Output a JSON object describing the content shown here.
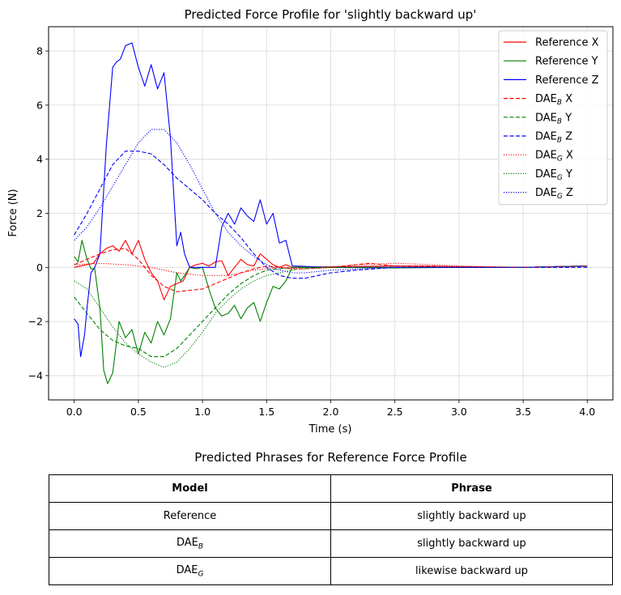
{
  "chart_data": {
    "type": "line",
    "title": "Predicted Force Profile for 'slightly backward up'",
    "xlabel": "Time (s)",
    "ylabel": "Force (N)",
    "xlim": [
      -0.2,
      4.2
    ],
    "ylim": [
      -4.9,
      8.9
    ],
    "xticks": [
      0.0,
      0.5,
      1.0,
      1.5,
      2.0,
      2.5,
      3.0,
      3.5,
      4.0
    ],
    "xtick_labels": [
      "0.0",
      "0.5",
      "1.0",
      "1.5",
      "2.0",
      "2.5",
      "3.0",
      "3.5",
      "4.0"
    ],
    "yticks": [
      -4,
      -2,
      0,
      2,
      4,
      6,
      8
    ],
    "ytick_labels": [
      "−4",
      "−2",
      "0",
      "2",
      "4",
      "6",
      "8"
    ],
    "grid": true,
    "legend_position": "top-right",
    "series": [
      {
        "name": "Reference X",
        "legend_main": "Reference X",
        "legend_sub": "",
        "legend_tail": "",
        "color": "#ff0000",
        "style": "solid",
        "x": [
          0,
          0.05,
          0.1,
          0.15,
          0.2,
          0.25,
          0.3,
          0.35,
          0.4,
          0.45,
          0.5,
          0.55,
          0.6,
          0.65,
          0.7,
          0.75,
          0.8,
          0.85,
          0.9,
          0.95,
          1.0,
          1.05,
          1.1,
          1.15,
          1.2,
          1.25,
          1.3,
          1.35,
          1.4,
          1.45,
          1.5,
          1.55,
          1.6,
          1.65,
          1.7,
          2.0,
          2.5,
          3.0,
          3.5,
          4.0
        ],
        "y": [
          0.0,
          0.05,
          0.1,
          0.15,
          0.5,
          0.7,
          0.8,
          0.6,
          1.0,
          0.5,
          1.0,
          0.3,
          -0.2,
          -0.5,
          -1.2,
          -0.7,
          -0.6,
          -0.5,
          0.0,
          0.1,
          0.15,
          0.05,
          0.2,
          0.25,
          -0.3,
          0.0,
          0.3,
          0.1,
          0.05,
          0.5,
          0.3,
          0.1,
          0.0,
          0.1,
          0.0,
          0.02,
          0.05,
          0.03,
          0.0,
          0.05
        ]
      },
      {
        "name": "Reference Y",
        "legend_main": "Reference Y",
        "legend_sub": "",
        "legend_tail": "",
        "color": "#008000",
        "style": "solid",
        "x": [
          0,
          0.03,
          0.06,
          0.1,
          0.13,
          0.16,
          0.2,
          0.23,
          0.26,
          0.3,
          0.35,
          0.4,
          0.45,
          0.5,
          0.55,
          0.6,
          0.65,
          0.7,
          0.75,
          0.8,
          0.83,
          0.86,
          0.9,
          0.95,
          1.0,
          1.05,
          1.1,
          1.15,
          1.2,
          1.25,
          1.3,
          1.35,
          1.4,
          1.45,
          1.5,
          1.55,
          1.6,
          1.65,
          1.7,
          2.0,
          2.5,
          3.0,
          3.5,
          4.0
        ],
        "y": [
          0.4,
          0.2,
          1.0,
          0.3,
          -0.05,
          -0.05,
          -1.5,
          -3.8,
          -4.3,
          -3.9,
          -2.0,
          -2.6,
          -2.3,
          -3.2,
          -2.4,
          -2.8,
          -2.0,
          -2.5,
          -1.9,
          -0.2,
          -0.5,
          -0.3,
          0.0,
          -0.05,
          0.0,
          -0.8,
          -1.5,
          -1.8,
          -1.7,
          -1.4,
          -1.9,
          -1.5,
          -1.3,
          -2.0,
          -1.3,
          -0.7,
          -0.8,
          -0.5,
          0.0,
          0.0,
          -0.02,
          0.0,
          0.0,
          0.05
        ]
      },
      {
        "name": "Reference Z",
        "legend_main": "Reference Z",
        "legend_sub": "",
        "legend_tail": "",
        "color": "#0000ff",
        "style": "solid",
        "x": [
          0,
          0.03,
          0.05,
          0.08,
          0.1,
          0.13,
          0.16,
          0.2,
          0.25,
          0.3,
          0.33,
          0.36,
          0.4,
          0.45,
          0.5,
          0.55,
          0.6,
          0.65,
          0.7,
          0.75,
          0.8,
          0.83,
          0.86,
          0.9,
          0.95,
          1.0,
          1.05,
          1.1,
          1.15,
          1.2,
          1.25,
          1.3,
          1.35,
          1.4,
          1.45,
          1.5,
          1.55,
          1.6,
          1.65,
          1.7,
          2.0,
          2.5,
          3.0,
          3.5,
          4.0
        ],
        "y": [
          -1.9,
          -2.1,
          -3.3,
          -2.5,
          -1.5,
          -0.2,
          0.0,
          0.5,
          4.5,
          7.4,
          7.6,
          7.7,
          8.2,
          8.3,
          7.4,
          6.7,
          7.5,
          6.6,
          7.2,
          4.8,
          0.8,
          1.3,
          0.5,
          0.0,
          0.0,
          0.0,
          0.0,
          0.0,
          1.5,
          2.0,
          1.6,
          2.2,
          1.9,
          1.7,
          2.5,
          1.6,
          2.0,
          0.9,
          1.0,
          0.05,
          0.0,
          0.0,
          0.0,
          0.0,
          0.05
        ]
      },
      {
        "name": "DAE_B X",
        "legend_main": "DAE",
        "legend_sub": "B",
        "legend_tail": " X",
        "color": "#ff0000",
        "style": "dashed",
        "x": [
          0,
          0.1,
          0.2,
          0.3,
          0.4,
          0.5,
          0.6,
          0.7,
          0.8,
          0.9,
          1.0,
          1.1,
          1.2,
          1.3,
          1.4,
          1.5,
          1.6,
          1.7,
          1.8,
          2.0,
          2.2,
          2.3,
          2.5,
          2.8,
          3.0,
          3.5,
          4.0
        ],
        "y": [
          0.1,
          0.3,
          0.5,
          0.65,
          0.7,
          0.3,
          -0.3,
          -0.7,
          -0.9,
          -0.85,
          -0.8,
          -0.6,
          -0.4,
          -0.2,
          -0.05,
          0.05,
          0.0,
          -0.05,
          -0.05,
          0.0,
          0.1,
          0.15,
          0.05,
          0.05,
          0.0,
          0.0,
          0.05
        ]
      },
      {
        "name": "DAE_B Y",
        "legend_main": "DAE",
        "legend_sub": "B",
        "legend_tail": " Y",
        "color": "#008000",
        "style": "dashed",
        "x": [
          0,
          0.1,
          0.2,
          0.3,
          0.4,
          0.5,
          0.6,
          0.7,
          0.8,
          0.9,
          1.0,
          1.1,
          1.2,
          1.3,
          1.4,
          1.5,
          1.6,
          1.7,
          1.8,
          2.0,
          2.5,
          3.0,
          3.5,
          4.0
        ],
        "y": [
          -1.1,
          -1.7,
          -2.3,
          -2.7,
          -2.9,
          -3.0,
          -3.3,
          -3.3,
          -3.0,
          -2.5,
          -2.0,
          -1.5,
          -1.0,
          -0.6,
          -0.3,
          -0.1,
          -0.05,
          0.0,
          0.0,
          0.0,
          0.0,
          0.0,
          0.0,
          0.05
        ]
      },
      {
        "name": "DAE_B Z",
        "legend_main": "DAE",
        "legend_sub": "B",
        "legend_tail": " Z",
        "color": "#0000ff",
        "style": "dashed",
        "x": [
          0,
          0.1,
          0.2,
          0.3,
          0.4,
          0.5,
          0.6,
          0.7,
          0.8,
          0.9,
          1.0,
          1.1,
          1.2,
          1.3,
          1.4,
          1.5,
          1.6,
          1.7,
          1.8,
          1.9,
          2.0,
          2.2,
          2.5,
          3.0,
          3.5,
          4.0
        ],
        "y": [
          1.2,
          2.0,
          2.9,
          3.8,
          4.3,
          4.3,
          4.2,
          3.8,
          3.3,
          2.9,
          2.5,
          2.0,
          1.6,
          1.1,
          0.5,
          0.0,
          -0.3,
          -0.4,
          -0.4,
          -0.3,
          -0.2,
          -0.1,
          0.0,
          0.0,
          0.0,
          0.0
        ]
      },
      {
        "name": "DAE_G X",
        "legend_main": "DAE",
        "legend_sub": "G",
        "legend_tail": " X",
        "color": "#ff0000",
        "style": "dotted",
        "x": [
          0,
          0.2,
          0.4,
          0.6,
          0.8,
          1.0,
          1.2,
          1.4,
          1.6,
          1.8,
          2.0,
          2.2,
          2.5,
          2.8,
          3.0,
          3.5,
          4.0
        ],
        "y": [
          0.1,
          0.15,
          0.1,
          0.0,
          -0.2,
          -0.3,
          -0.3,
          -0.1,
          0.0,
          -0.05,
          0.0,
          0.1,
          0.15,
          0.1,
          0.05,
          0.0,
          0.05
        ]
      },
      {
        "name": "DAE_G Y",
        "legend_main": "DAE",
        "legend_sub": "G",
        "legend_tail": " Y",
        "color": "#008000",
        "style": "dotted",
        "x": [
          0,
          0.1,
          0.2,
          0.3,
          0.4,
          0.5,
          0.6,
          0.7,
          0.8,
          0.9,
          1.0,
          1.1,
          1.2,
          1.3,
          1.4,
          1.5,
          1.6,
          1.7,
          1.8,
          2.0,
          2.5,
          3.0,
          3.5,
          4.0
        ],
        "y": [
          -0.5,
          -0.8,
          -1.5,
          -2.2,
          -2.8,
          -3.2,
          -3.5,
          -3.7,
          -3.5,
          -3.0,
          -2.4,
          -1.7,
          -1.2,
          -0.8,
          -0.5,
          -0.3,
          -0.2,
          -0.1,
          -0.05,
          0.0,
          0.0,
          0.0,
          0.0,
          0.05
        ]
      },
      {
        "name": "DAE_G Z",
        "legend_main": "DAE",
        "legend_sub": "G",
        "legend_tail": " Z",
        "color": "#0000ff",
        "style": "dotted",
        "x": [
          0,
          0.1,
          0.2,
          0.3,
          0.4,
          0.5,
          0.6,
          0.7,
          0.8,
          0.9,
          1.0,
          1.1,
          1.2,
          1.3,
          1.4,
          1.5,
          1.6,
          1.7,
          1.8,
          2.0,
          2.5,
          3.0,
          3.5,
          4.0
        ],
        "y": [
          1.0,
          1.5,
          2.2,
          3.0,
          3.8,
          4.6,
          5.1,
          5.1,
          4.6,
          3.8,
          2.9,
          2.0,
          1.3,
          0.8,
          0.4,
          0.1,
          -0.1,
          -0.2,
          -0.2,
          -0.1,
          0.0,
          0.0,
          0.0,
          0.05
        ]
      }
    ]
  },
  "table": {
    "title": "Predicted Phrases for Reference Force Profile",
    "headers": [
      "Model",
      "Phrase"
    ],
    "rows": [
      {
        "model_main": "Reference",
        "model_sub": "",
        "phrase": "slightly backward up"
      },
      {
        "model_main": "DAE",
        "model_sub": "B",
        "phrase": "slightly backward up"
      },
      {
        "model_main": "DAE",
        "model_sub": "G",
        "phrase": "likewise backward up"
      }
    ]
  }
}
